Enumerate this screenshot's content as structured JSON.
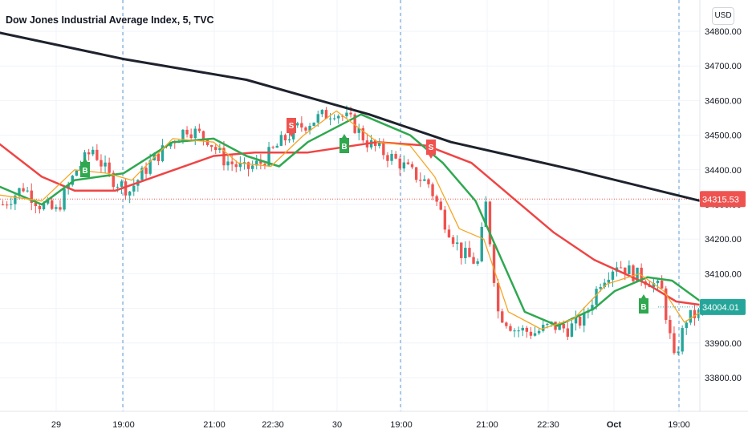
{
  "header": {
    "title": "Dow Jones Industrial Average Index, 5, TVC",
    "currency": "USD"
  },
  "colors": {
    "up": "#26a69a",
    "down": "#ef5350",
    "sma_black": "#1e222d",
    "sma_red": "#ef4444",
    "sma_green": "#2fa84f",
    "ema_orange": "#f5a623",
    "last_price_tag": "#ef5350",
    "current_price_tag": "#26a69a",
    "session_line": "#5b9bd5",
    "grid": "#f0f3fa"
  },
  "chart_data": {
    "type": "candlestick",
    "y_ticks": [
      "34800.00",
      "34700.00",
      "34600.00",
      "34500.00",
      "34400.00",
      "34300.00",
      "34200.00",
      "34100.00",
      "34000.00",
      "33900.00",
      "33800.00"
    ],
    "ylim": [
      33740,
      34830
    ],
    "x_ticks": [
      {
        "label": "29",
        "bold": false
      },
      {
        "label": "19:00",
        "bold": false
      },
      {
        "label": "21:00",
        "bold": false
      },
      {
        "label": "22:30",
        "bold": false
      },
      {
        "label": "30",
        "bold": false
      },
      {
        "label": "19:00",
        "bold": false
      },
      {
        "label": "21:00",
        "bold": false
      },
      {
        "label": "22:30",
        "bold": false
      },
      {
        "label": "Oct",
        "bold": true
      },
      {
        "label": "19:00",
        "bold": false
      }
    ],
    "price_tags": [
      {
        "label": "34315.53",
        "value": 34315.53,
        "kind": "previous-close"
      },
      {
        "label": "34004.01",
        "value": 34004.01,
        "kind": "last-price"
      }
    ],
    "signals": [
      {
        "label": "B",
        "type": "buy"
      },
      {
        "label": "S",
        "type": "sell"
      },
      {
        "label": "B",
        "type": "buy"
      },
      {
        "label": "S",
        "type": "sell"
      },
      {
        "label": "B",
        "type": "buy"
      }
    ],
    "close_path": [
      [
        0,
        34300
      ],
      [
        5,
        34350
      ],
      [
        9,
        34300
      ],
      [
        13,
        34280
      ],
      [
        18,
        34400
      ],
      [
        22,
        34460
      ],
      [
        26,
        34380
      ],
      [
        31,
        34340
      ],
      [
        36,
        34420
      ],
      [
        41,
        34480
      ],
      [
        45,
        34520
      ],
      [
        50,
        34490
      ],
      [
        54,
        34430
      ],
      [
        59,
        34400
      ],
      [
        63,
        34420
      ],
      [
        68,
        34480
      ],
      [
        72,
        34520
      ],
      [
        77,
        34550
      ],
      [
        81,
        34570
      ],
      [
        85,
        34540
      ],
      [
        89,
        34480
      ],
      [
        93,
        34450
      ],
      [
        97,
        34420
      ],
      [
        100,
        34390
      ],
      [
        104,
        34360
      ],
      [
        108,
        34250
      ],
      [
        112,
        34160
      ],
      [
        116,
        34130
      ],
      [
        118,
        34300
      ],
      [
        121,
        33990
      ],
      [
        125,
        33940
      ],
      [
        130,
        33930
      ],
      [
        134,
        33950
      ],
      [
        138,
        33940
      ],
      [
        142,
        33970
      ],
      [
        146,
        34080
      ],
      [
        150,
        34130
      ],
      [
        154,
        34100
      ],
      [
        158,
        34080
      ],
      [
        161,
        34050
      ],
      [
        164,
        33850
      ],
      [
        167,
        33970
      ],
      [
        171,
        33990
      ]
    ],
    "series": [
      {
        "name": "",
        "color": "#1e222d",
        "points": [
          [
            -2,
            34800
          ],
          [
            30,
            34720
          ],
          [
            60,
            34660
          ],
          [
            90,
            34560
          ],
          [
            110,
            34480
          ],
          [
            140,
            34400
          ],
          [
            171,
            34310
          ]
        ]
      },
      {
        "name": "",
        "color": "#ef4444",
        "points": [
          [
            -2,
            34490
          ],
          [
            10,
            34380
          ],
          [
            18,
            34340
          ],
          [
            28,
            34340
          ],
          [
            40,
            34390
          ],
          [
            52,
            34440
          ],
          [
            62,
            34450
          ],
          [
            75,
            34450
          ],
          [
            92,
            34480
          ],
          [
            104,
            34470
          ],
          [
            115,
            34420
          ],
          [
            125,
            34320
          ],
          [
            135,
            34220
          ],
          [
            145,
            34140
          ],
          [
            158,
            34070
          ],
          [
            165,
            34020
          ],
          [
            171,
            34010
          ]
        ]
      },
      {
        "name": "",
        "color": "#2fa84f",
        "points": [
          [
            -2,
            34360
          ],
          [
            10,
            34300
          ],
          [
            18,
            34370
          ],
          [
            30,
            34390
          ],
          [
            42,
            34480
          ],
          [
            52,
            34490
          ],
          [
            60,
            34440
          ],
          [
            68,
            34410
          ],
          [
            75,
            34480
          ],
          [
            88,
            34560
          ],
          [
            100,
            34500
          ],
          [
            108,
            34420
          ],
          [
            116,
            34310
          ],
          [
            122,
            34150
          ],
          [
            128,
            33990
          ],
          [
            136,
            33950
          ],
          [
            145,
            34000
          ],
          [
            150,
            34050
          ],
          [
            158,
            34090
          ],
          [
            164,
            34080
          ],
          [
            171,
            34020
          ]
        ]
      },
      {
        "name": "",
        "color": "#f5a623",
        "points": [
          [
            -2,
            34330
          ],
          [
            10,
            34310
          ],
          [
            18,
            34400
          ],
          [
            26,
            34390
          ],
          [
            32,
            34370
          ],
          [
            42,
            34490
          ],
          [
            52,
            34480
          ],
          [
            58,
            34420
          ],
          [
            66,
            34410
          ],
          [
            74,
            34500
          ],
          [
            82,
            34570
          ],
          [
            92,
            34480
          ],
          [
            100,
            34470
          ],
          [
            106,
            34380
          ],
          [
            112,
            34230
          ],
          [
            118,
            34200
          ],
          [
            124,
            33990
          ],
          [
            132,
            33940
          ],
          [
            140,
            33970
          ],
          [
            148,
            34070
          ],
          [
            156,
            34100
          ],
          [
            162,
            34050
          ],
          [
            167,
            33960
          ],
          [
            171,
            33990
          ]
        ]
      }
    ]
  }
}
